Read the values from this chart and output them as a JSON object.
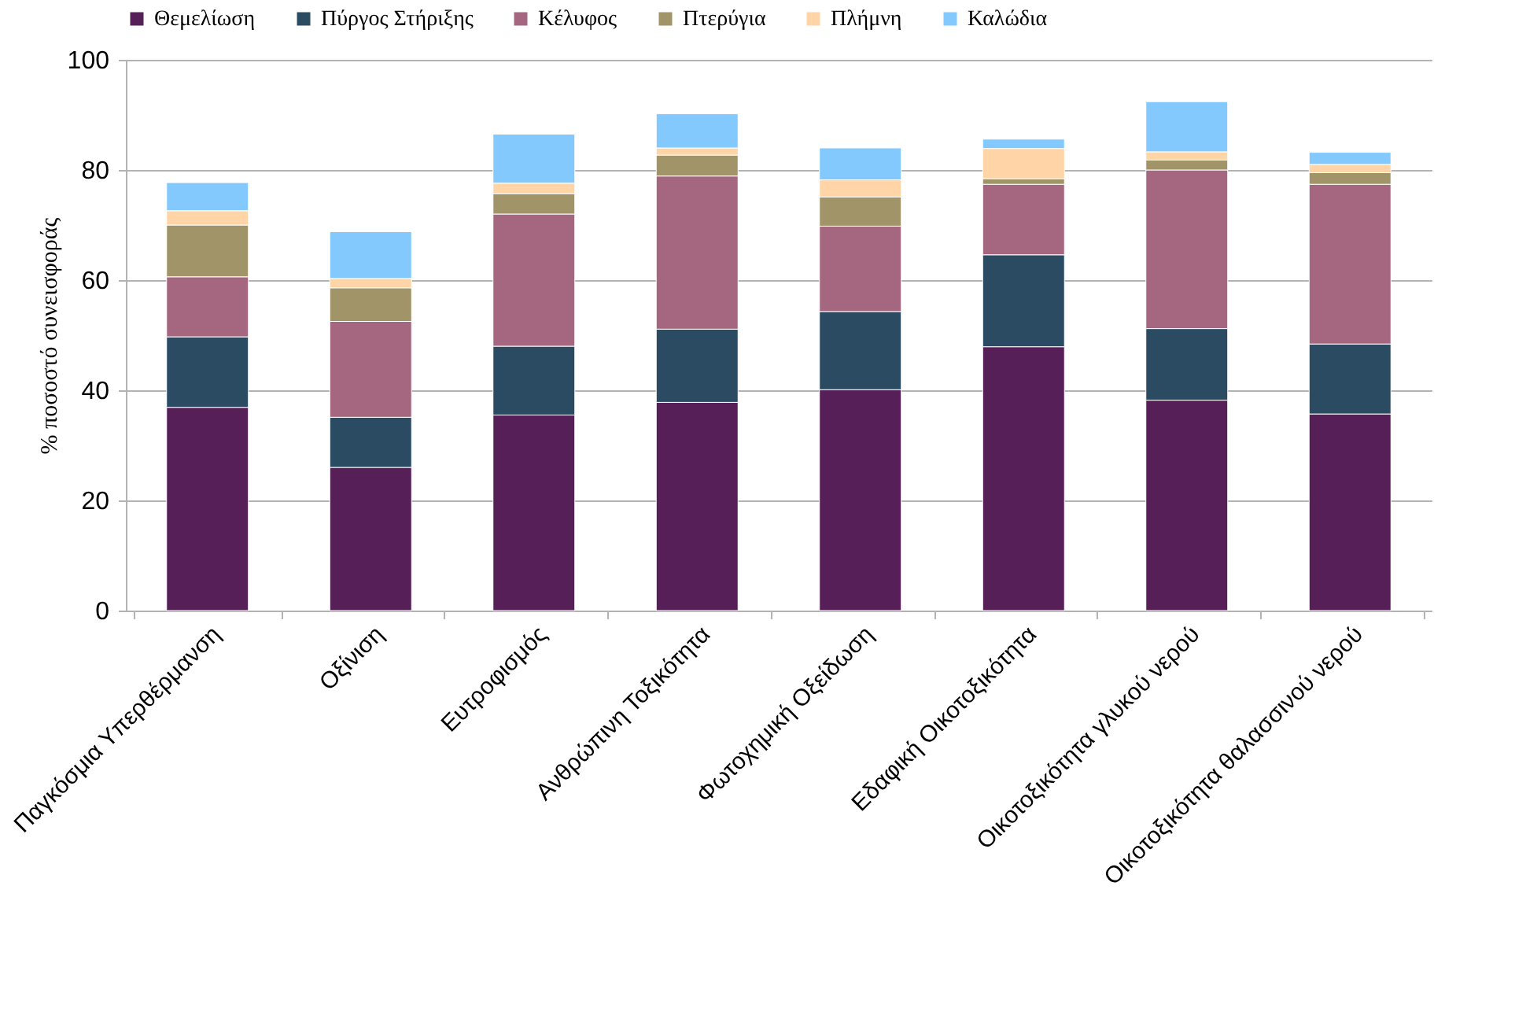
{
  "chart_data": {
    "type": "bar",
    "stacked": true,
    "ylabel": "% ποσοστό συνεισφοράς",
    "categories": [
      "Παγκόσμια Υπερθέρμανση",
      "Οξίνιση",
      "Ευτροφισμός",
      "Ανθρώπινη Τοξικότητα",
      "Φωτοχημική Οξείδωση",
      "Εδαφική Οικοτοξικότητα",
      "Οικοτοξικότητα γλυκού νερού",
      "Οικοτοξικότητα θαλασσινού νερού"
    ],
    "series": [
      {
        "name": "Θεμελίωση",
        "color": "#561f57",
        "values": [
          36.9,
          26.0,
          35.5,
          37.8,
          40.1,
          47.9,
          38.2,
          35.7
        ]
      },
      {
        "name": "Πύργος Στήριξης",
        "color": "#2b4b63",
        "values": [
          12.8,
          9.1,
          12.5,
          13.3,
          14.2,
          16.7,
          13.0,
          12.7
        ]
      },
      {
        "name": "Κέλυφος",
        "color": "#a5677f",
        "values": [
          10.9,
          17.4,
          24.0,
          27.8,
          15.5,
          12.8,
          28.8,
          29.0
        ]
      },
      {
        "name": "Πτερύγια",
        "color": "#a19469",
        "values": [
          9.4,
          6.1,
          3.7,
          3.8,
          5.3,
          1.0,
          1.8,
          2.1
        ]
      },
      {
        "name": "Πλήμνη",
        "color": "#ffd4a6",
        "values": [
          2.6,
          1.7,
          1.9,
          1.3,
          3.1,
          5.5,
          1.5,
          1.5
        ]
      },
      {
        "name": "Καλώδια",
        "color": "#83c9fe",
        "values": [
          5.1,
          8.5,
          8.9,
          6.2,
          5.8,
          1.7,
          9.1,
          2.2
        ]
      }
    ],
    "ylim": [
      0,
      100
    ],
    "yticks": [
      0,
      20,
      40,
      60,
      80,
      100
    ],
    "grid": "y",
    "legend": "top"
  }
}
